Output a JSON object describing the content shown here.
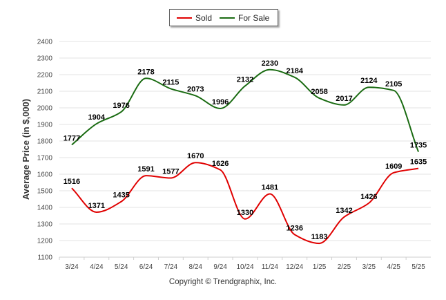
{
  "chart_data": {
    "type": "line",
    "ylabel": "Average Price (in $,000)",
    "ylim": [
      1100,
      2400
    ],
    "yticks": [
      1100,
      1200,
      1300,
      1400,
      1500,
      1600,
      1700,
      1800,
      1900,
      2000,
      2100,
      2200,
      2300,
      2400
    ],
    "categories": [
      "3/24",
      "4/24",
      "5/24",
      "6/24",
      "7/24",
      "8/24",
      "9/24",
      "10/24",
      "11/24",
      "12/24",
      "1/25",
      "2/25",
      "3/25",
      "4/25",
      "5/25"
    ],
    "grid": "horizontal",
    "legend_position": "top-center",
    "series": [
      {
        "name": "Sold",
        "color": "#e00000",
        "values": [
          1516,
          1371,
          1435,
          1591,
          1577,
          1670,
          1626,
          1330,
          1481,
          1236,
          1183,
          1342,
          1426,
          1609,
          1635
        ]
      },
      {
        "name": "For Sale",
        "color": "#1a6b12",
        "values": [
          1777,
          1904,
          1976,
          2178,
          2115,
          2073,
          1996,
          2132,
          2230,
          2184,
          2058,
          2017,
          2124,
          2105,
          1735
        ]
      }
    ]
  },
  "footer": {
    "copyright": "Copyright © Trendgraphix, Inc."
  }
}
